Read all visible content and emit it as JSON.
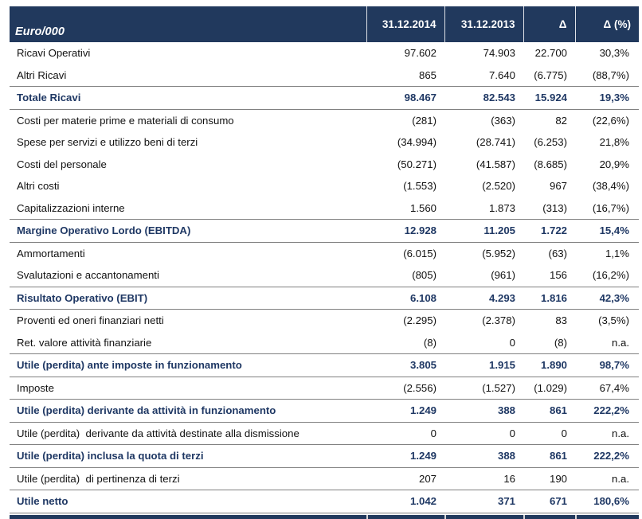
{
  "colors": {
    "header_bg": "#21395d",
    "total_text": "#1f3864",
    "total_border": "#808080",
    "body_text": "#111111"
  },
  "table": {
    "unit_label": "Euro/000",
    "columns": [
      "31.12.2014",
      "31.12.2013",
      "Δ",
      "Δ (%)"
    ],
    "rows": [
      {
        "label": "Ricavi Operativi",
        "c1": "97.602",
        "c2": "74.903",
        "c3": "22.700",
        "c4": "30,3%"
      },
      {
        "label": "Altri Ricavi",
        "c1": "865",
        "c2": "7.640",
        "c3": "(6.775)",
        "c4": "(88,7%)"
      },
      {
        "label": "Totale Ricavi",
        "c1": "98.467",
        "c2": "82.543",
        "c3": "15.924",
        "c4": "19,3%"
      },
      {
        "label": "Costi per materie prime e materiali di consumo",
        "c1": "(281)",
        "c2": "(363)",
        "c3": "82",
        "c4": "(22,6%)"
      },
      {
        "label": "Spese per servizi e utilizzo beni di terzi",
        "c1": "(34.994)",
        "c2": "(28.741)",
        "c3": "(6.253)",
        "c4": "21,8%"
      },
      {
        "label": "Costi del personale",
        "c1": "(50.271)",
        "c2": "(41.587)",
        "c3": "(8.685)",
        "c4": "20,9%"
      },
      {
        "label": "Altri costi",
        "c1": "(1.553)",
        "c2": "(2.520)",
        "c3": "967",
        "c4": "(38,4%)"
      },
      {
        "label": "Capitalizzazioni interne",
        "c1": "1.560",
        "c2": "1.873",
        "c3": "(313)",
        "c4": "(16,7%)"
      },
      {
        "label": "Margine Operativo Lordo (EBITDA)",
        "c1": "12.928",
        "c2": "11.205",
        "c3": "1.722",
        "c4": "15,4%"
      },
      {
        "label": "Ammortamenti",
        "c1": "(6.015)",
        "c2": "(5.952)",
        "c3": "(63)",
        "c4": "1,1%"
      },
      {
        "label": "Svalutazioni e accantonamenti",
        "c1": "(805)",
        "c2": "(961)",
        "c3": "156",
        "c4": "(16,2%)"
      },
      {
        "label": "Risultato Operativo (EBIT)",
        "c1": "6.108",
        "c2": "4.293",
        "c3": "1.816",
        "c4": "42,3%"
      },
      {
        "label": "Proventi ed oneri finanziari netti",
        "c1": "(2.295)",
        "c2": "(2.378)",
        "c3": "83",
        "c4": "(3,5%)"
      },
      {
        "label": "Ret. valore attività finanziarie",
        "c1": "(8)",
        "c2": "0",
        "c3": "(8)",
        "c4": "n.a."
      },
      {
        "label": "Utile (perdita) ante imposte in funzionamento",
        "c1": "3.805",
        "c2": "1.915",
        "c3": "1.890",
        "c4": "98,7%"
      },
      {
        "label": "Imposte",
        "c1": "(2.556)",
        "c2": "(1.527)",
        "c3": "(1.029)",
        "c4": "67,4%"
      },
      {
        "label": "Utile (perdita) derivante da attività in funzionamento",
        "c1": "1.249",
        "c2": "388",
        "c3": "861",
        "c4": "222,2%"
      },
      {
        "label": "Utile (perdita)  derivante da attività destinate alla dismissione",
        "c1": "0",
        "c2": "0",
        "c3": "0",
        "c4": "n.a."
      },
      {
        "label": "Utile (perdita) inclusa la quota di terzi",
        "c1": "1.249",
        "c2": "388",
        "c3": "861",
        "c4": "222,2%"
      },
      {
        "label": "Utile (perdita)  di pertinenza di terzi",
        "c1": "207",
        "c2": "16",
        "c3": "190",
        "c4": "n.a."
      },
      {
        "label": "Utile netto",
        "c1": "1.042",
        "c2": "371",
        "c3": "671",
        "c4": "180,6%"
      }
    ]
  }
}
